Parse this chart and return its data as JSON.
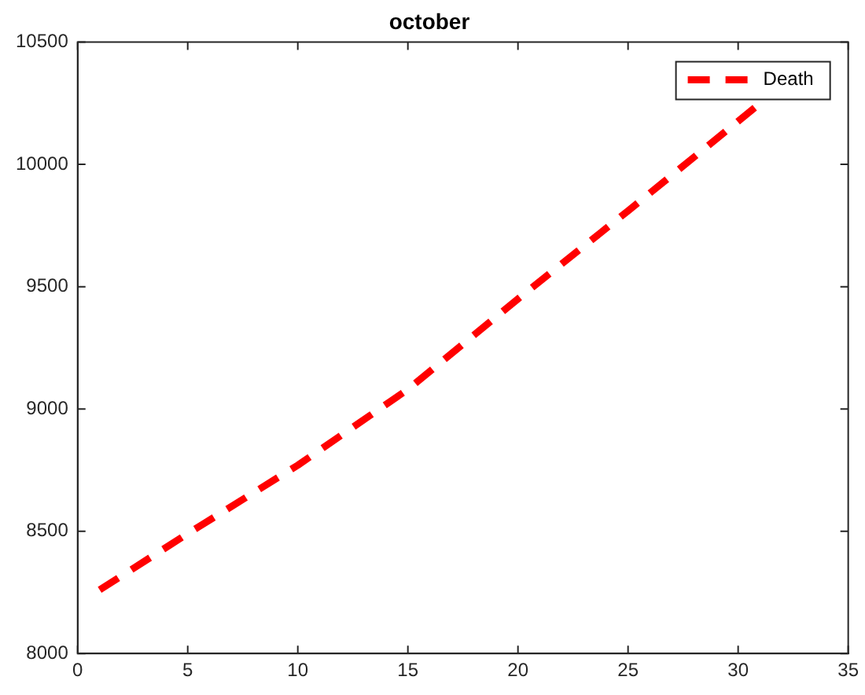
{
  "chart_data": {
    "type": "line",
    "title": "october",
    "x": [
      1,
      5,
      10,
      15,
      20,
      25,
      31
    ],
    "series": [
      {
        "name": "Death",
        "color": "#ff0000",
        "values": [
          8260,
          8490,
          8770,
          9080,
          9450,
          9810,
          10250
        ]
      }
    ],
    "xlim": [
      0,
      35
    ],
    "xticks": [
      0,
      5,
      10,
      15,
      20,
      25,
      30,
      35
    ],
    "ylim": [
      8000,
      10500
    ],
    "yticks": [
      8000,
      8500,
      9000,
      9500,
      10000,
      10500
    ],
    "grid": false,
    "legend": "top right",
    "line_style": "dashed",
    "marker": "none"
  }
}
